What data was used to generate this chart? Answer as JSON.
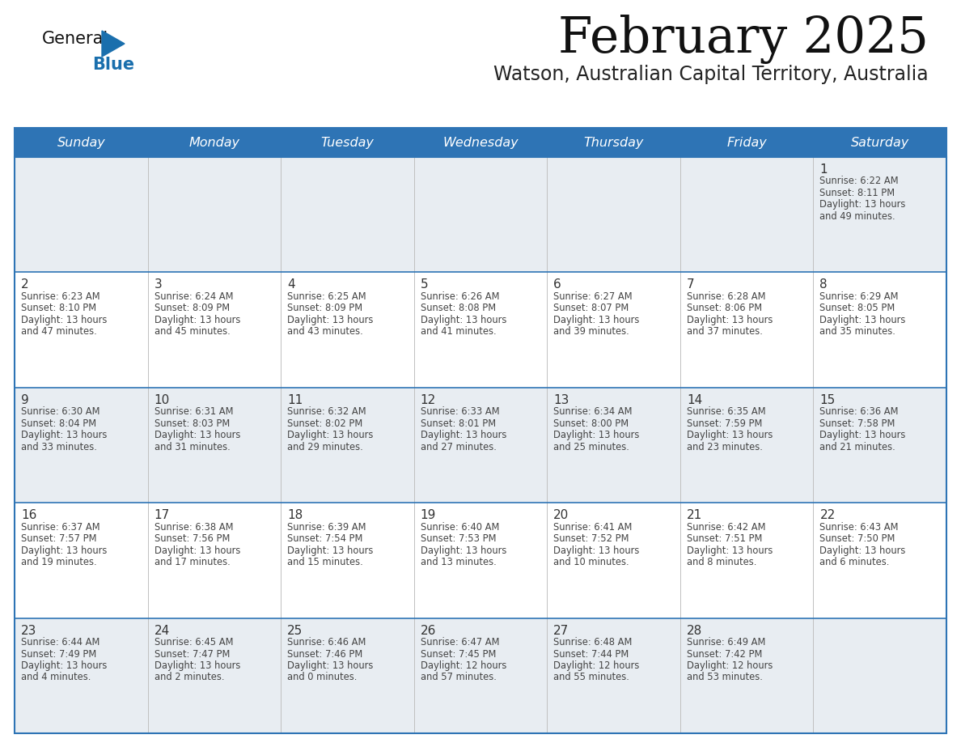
{
  "title": "February 2025",
  "subtitle": "Watson, Australian Capital Territory, Australia",
  "header_bg_color": "#2e74b5",
  "header_text_color": "#ffffff",
  "day_names": [
    "Sunday",
    "Monday",
    "Tuesday",
    "Wednesday",
    "Thursday",
    "Friday",
    "Saturday"
  ],
  "cell_bg_light": "#e8edf2",
  "cell_bg_white": "#ffffff",
  "cell_border_color": "#2e74b5",
  "cell_sep_color": "#c0c0c0",
  "date_text_color": "#333333",
  "info_text_color": "#444444",
  "title_color": "#111111",
  "subtitle_color": "#222222",
  "logo_general_color": "#111111",
  "logo_blue_color": "#1a6fad",
  "logo_triangle_color": "#1a6fad",
  "weeks": [
    [
      {
        "day": null,
        "sunrise": null,
        "sunset": null,
        "daylight": null
      },
      {
        "day": null,
        "sunrise": null,
        "sunset": null,
        "daylight": null
      },
      {
        "day": null,
        "sunrise": null,
        "sunset": null,
        "daylight": null
      },
      {
        "day": null,
        "sunrise": null,
        "sunset": null,
        "daylight": null
      },
      {
        "day": null,
        "sunrise": null,
        "sunset": null,
        "daylight": null
      },
      {
        "day": null,
        "sunrise": null,
        "sunset": null,
        "daylight": null
      },
      {
        "day": 1,
        "sunrise": "6:22 AM",
        "sunset": "8:11 PM",
        "daylight": "13 hours and 49 minutes."
      }
    ],
    [
      {
        "day": 2,
        "sunrise": "6:23 AM",
        "sunset": "8:10 PM",
        "daylight": "13 hours and 47 minutes."
      },
      {
        "day": 3,
        "sunrise": "6:24 AM",
        "sunset": "8:09 PM",
        "daylight": "13 hours and 45 minutes."
      },
      {
        "day": 4,
        "sunrise": "6:25 AM",
        "sunset": "8:09 PM",
        "daylight": "13 hours and 43 minutes."
      },
      {
        "day": 5,
        "sunrise": "6:26 AM",
        "sunset": "8:08 PM",
        "daylight": "13 hours and 41 minutes."
      },
      {
        "day": 6,
        "sunrise": "6:27 AM",
        "sunset": "8:07 PM",
        "daylight": "13 hours and 39 minutes."
      },
      {
        "day": 7,
        "sunrise": "6:28 AM",
        "sunset": "8:06 PM",
        "daylight": "13 hours and 37 minutes."
      },
      {
        "day": 8,
        "sunrise": "6:29 AM",
        "sunset": "8:05 PM",
        "daylight": "13 hours and 35 minutes."
      }
    ],
    [
      {
        "day": 9,
        "sunrise": "6:30 AM",
        "sunset": "8:04 PM",
        "daylight": "13 hours and 33 minutes."
      },
      {
        "day": 10,
        "sunrise": "6:31 AM",
        "sunset": "8:03 PM",
        "daylight": "13 hours and 31 minutes."
      },
      {
        "day": 11,
        "sunrise": "6:32 AM",
        "sunset": "8:02 PM",
        "daylight": "13 hours and 29 minutes."
      },
      {
        "day": 12,
        "sunrise": "6:33 AM",
        "sunset": "8:01 PM",
        "daylight": "13 hours and 27 minutes."
      },
      {
        "day": 13,
        "sunrise": "6:34 AM",
        "sunset": "8:00 PM",
        "daylight": "13 hours and 25 minutes."
      },
      {
        "day": 14,
        "sunrise": "6:35 AM",
        "sunset": "7:59 PM",
        "daylight": "13 hours and 23 minutes."
      },
      {
        "day": 15,
        "sunrise": "6:36 AM",
        "sunset": "7:58 PM",
        "daylight": "13 hours and 21 minutes."
      }
    ],
    [
      {
        "day": 16,
        "sunrise": "6:37 AM",
        "sunset": "7:57 PM",
        "daylight": "13 hours and 19 minutes."
      },
      {
        "day": 17,
        "sunrise": "6:38 AM",
        "sunset": "7:56 PM",
        "daylight": "13 hours and 17 minutes."
      },
      {
        "day": 18,
        "sunrise": "6:39 AM",
        "sunset": "7:54 PM",
        "daylight": "13 hours and 15 minutes."
      },
      {
        "day": 19,
        "sunrise": "6:40 AM",
        "sunset": "7:53 PM",
        "daylight": "13 hours and 13 minutes."
      },
      {
        "day": 20,
        "sunrise": "6:41 AM",
        "sunset": "7:52 PM",
        "daylight": "13 hours and 10 minutes."
      },
      {
        "day": 21,
        "sunrise": "6:42 AM",
        "sunset": "7:51 PM",
        "daylight": "13 hours and 8 minutes."
      },
      {
        "day": 22,
        "sunrise": "6:43 AM",
        "sunset": "7:50 PM",
        "daylight": "13 hours and 6 minutes."
      }
    ],
    [
      {
        "day": 23,
        "sunrise": "6:44 AM",
        "sunset": "7:49 PM",
        "daylight": "13 hours and 4 minutes."
      },
      {
        "day": 24,
        "sunrise": "6:45 AM",
        "sunset": "7:47 PM",
        "daylight": "13 hours and 2 minutes."
      },
      {
        "day": 25,
        "sunrise": "6:46 AM",
        "sunset": "7:46 PM",
        "daylight": "13 hours and 0 minutes."
      },
      {
        "day": 26,
        "sunrise": "6:47 AM",
        "sunset": "7:45 PM",
        "daylight": "12 hours and 57 minutes."
      },
      {
        "day": 27,
        "sunrise": "6:48 AM",
        "sunset": "7:44 PM",
        "daylight": "12 hours and 55 minutes."
      },
      {
        "day": 28,
        "sunrise": "6:49 AM",
        "sunset": "7:42 PM",
        "daylight": "12 hours and 53 minutes."
      },
      {
        "day": null,
        "sunrise": null,
        "sunset": null,
        "daylight": null
      }
    ]
  ]
}
